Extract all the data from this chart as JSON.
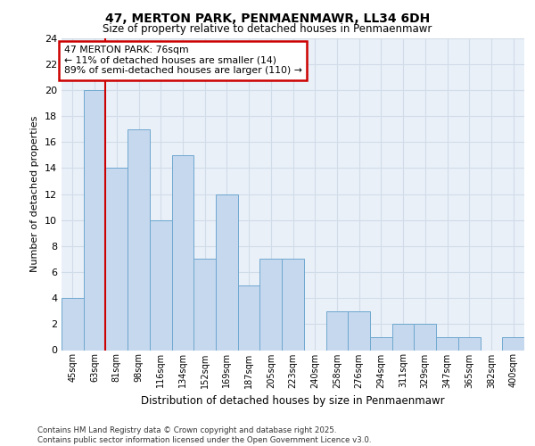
{
  "title1": "47, MERTON PARK, PENMAENMAWR, LL34 6DH",
  "title2": "Size of property relative to detached houses in Penmaenmawr",
  "xlabel": "Distribution of detached houses by size in Penmaenmawr",
  "ylabel": "Number of detached properties",
  "categories": [
    "45sqm",
    "63sqm",
    "81sqm",
    "98sqm",
    "116sqm",
    "134sqm",
    "152sqm",
    "169sqm",
    "187sqm",
    "205sqm",
    "223sqm",
    "240sqm",
    "258sqm",
    "276sqm",
    "294sqm",
    "311sqm",
    "329sqm",
    "347sqm",
    "365sqm",
    "382sqm",
    "400sqm"
  ],
  "values": [
    4,
    20,
    14,
    17,
    10,
    15,
    7,
    12,
    5,
    7,
    7,
    0,
    3,
    3,
    1,
    2,
    2,
    1,
    1,
    0,
    1
  ],
  "bar_color": "#c5d8ed",
  "bar_edge_color": "#6fa8d0",
  "grid_color": "#d0dce8",
  "bg_color": "#eaf0f8",
  "red_line_x": 1.5,
  "annotation_text": "47 MERTON PARK: 76sqm\n← 11% of detached houses are smaller (14)\n89% of semi-detached houses are larger (110) →",
  "annotation_box_color": "#ffffff",
  "annotation_border_color": "#cc0000",
  "footer": "Contains HM Land Registry data © Crown copyright and database right 2025.\nContains public sector information licensed under the Open Government Licence v3.0.",
  "ylim": [
    0,
    24
  ],
  "yticks": [
    0,
    2,
    4,
    6,
    8,
    10,
    12,
    14,
    16,
    18,
    20,
    22,
    24
  ]
}
